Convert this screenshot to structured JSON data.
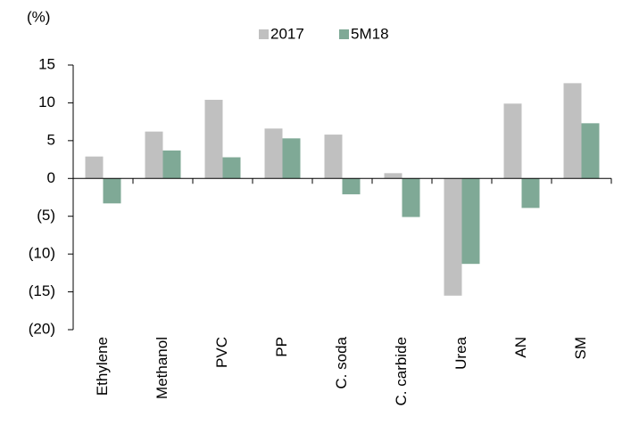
{
  "chart_data": {
    "type": "bar",
    "y_unit_label": "(%)",
    "categories": [
      "Ethylene",
      "Methanol",
      "PVC",
      "PP",
      "C. soda",
      "C. carbide",
      "Urea",
      "AN",
      "SM"
    ],
    "series": [
      {
        "name": "2017",
        "color": "#c0c0c0",
        "values": [
          2.9,
          6.2,
          10.4,
          6.6,
          5.8,
          0.7,
          -15.5,
          9.9,
          12.6
        ]
      },
      {
        "name": "5M18",
        "color": "#7fa996",
        "values": [
          -3.3,
          3.7,
          2.8,
          5.3,
          -2.1,
          -5.1,
          -11.3,
          -3.9,
          7.3
        ]
      }
    ],
    "ylim": [
      -20,
      15
    ],
    "yticks": [
      15,
      10,
      5,
      0,
      {
        "value": -5,
        "label": "(5)"
      },
      {
        "value": -10,
        "label": "(10)"
      },
      {
        "value": -15,
        "label": "(15)"
      },
      {
        "value": -20,
        "label": "(20)"
      }
    ],
    "grid": false,
    "legend": "top"
  }
}
